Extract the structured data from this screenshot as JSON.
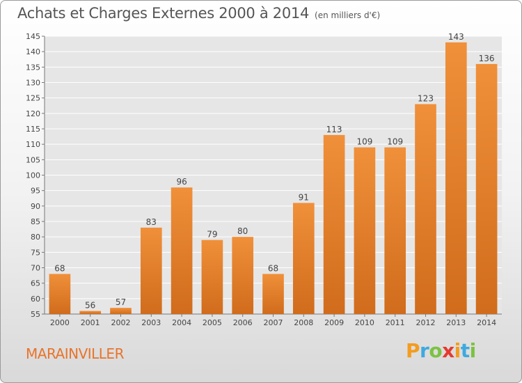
{
  "chart_data": {
    "type": "bar",
    "title": "Achats et Charges Externes 2000 à 2014",
    "subtitle": "(en milliers d'€)",
    "categories": [
      "2000",
      "2001",
      "2002",
      "2003",
      "2004",
      "2005",
      "2006",
      "2007",
      "2008",
      "2009",
      "2010",
      "2011",
      "2012",
      "2013",
      "2014"
    ],
    "values": [
      68,
      56,
      57,
      83,
      96,
      79,
      80,
      68,
      91,
      113,
      109,
      109,
      123,
      143,
      136
    ],
    "ylim": [
      55,
      145
    ],
    "yticks": [
      55,
      60,
      65,
      70,
      75,
      80,
      85,
      90,
      95,
      100,
      105,
      110,
      115,
      120,
      125,
      130,
      135,
      140,
      145
    ],
    "grid": true,
    "bar_color": "#f0903a",
    "bar_color_dark": "#d06c1c"
  },
  "place_name": "MARAINVILLER",
  "brand": {
    "letters": [
      "P",
      "r",
      "o",
      "x",
      "i",
      "t",
      "i"
    ],
    "colors": [
      "#f39c1f",
      "#3fa9e0",
      "#7cc242",
      "#e53a2f",
      "#f39c1f",
      "#3fa9e0",
      "#7cc242"
    ]
  }
}
